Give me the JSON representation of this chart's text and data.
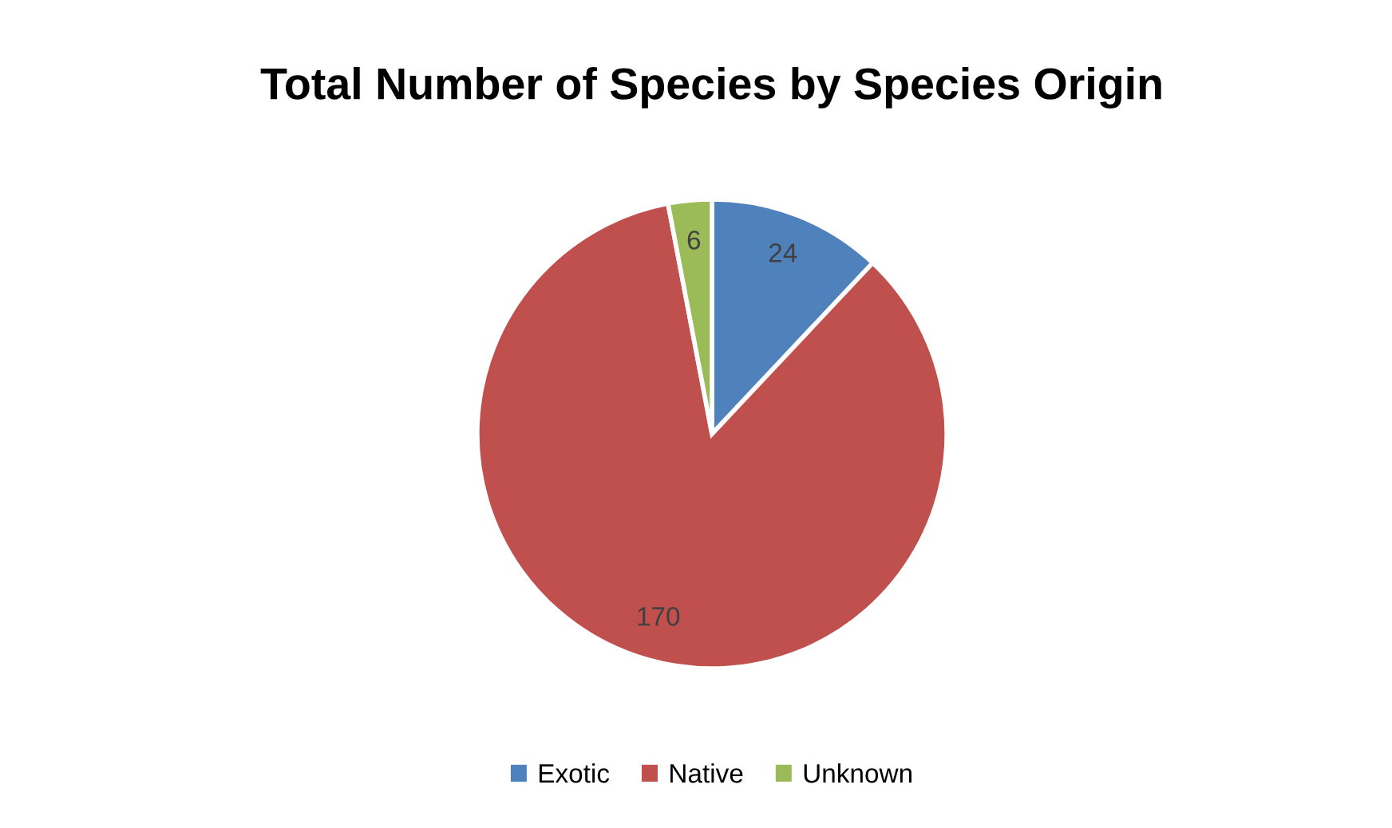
{
  "chart_data": {
    "type": "pie",
    "title": "Total Number of Species by Species Origin",
    "categories": [
      "Exotic",
      "Native",
      "Unknown"
    ],
    "values": [
      24,
      170,
      6
    ],
    "colors": [
      "#4f81bd",
      "#c0504d",
      "#9bbb59"
    ],
    "data_labels": true,
    "legend": "bottom"
  }
}
